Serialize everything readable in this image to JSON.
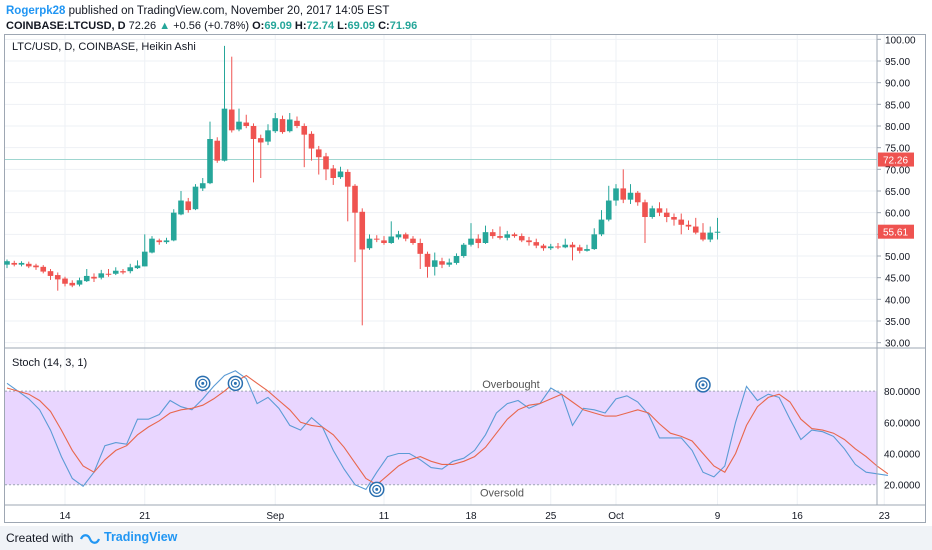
{
  "header": {
    "author": "Rogerpk28",
    "published_text": "published on TradingView.com, November 20, 2017 14:05 EST",
    "symbol": "COINBASE:LTCUSD, D",
    "last": "72.26",
    "change": "+0.56 (+0.78%)",
    "o_label": "O:",
    "o_value": "69.09",
    "h_label": "H:",
    "h_value": "72.74",
    "l_label": "L:",
    "l_value": "69.09",
    "c_label": "C:",
    "c_value": "71.96"
  },
  "footer": {
    "created_with": "Created with",
    "brand": "TradingView"
  },
  "colors": {
    "up": "#26a69a",
    "down": "#ef5350",
    "k_line": "#5b9bd5",
    "d_line": "#e8674d",
    "band_fill": "#e9d6ff",
    "label_bg_green": "#26a69a",
    "label_bg_red": "#ef5350"
  },
  "chart_data": [
    {
      "type": "candlestick",
      "title": "LTC/USD, D, COINBASE, Heikin Ashi",
      "ylim": [
        29,
        101
      ],
      "y_ticks": [
        "100.00",
        "95.00",
        "90.00",
        "85.00",
        "80.00",
        "75.00",
        "70.00",
        "65.00",
        "60.00",
        "55.00",
        "50.00",
        "45.00",
        "40.00",
        "35.00",
        "30.00"
      ],
      "x_tick_labels": [
        {
          "i": 8,
          "label": "14"
        },
        {
          "i": 19,
          "label": "21"
        },
        {
          "i": 37,
          "label": "Sep"
        },
        {
          "i": 52,
          "label": "11"
        },
        {
          "i": 64,
          "label": "18"
        },
        {
          "i": 75,
          "label": "25"
        },
        {
          "i": 84,
          "label": "Oct"
        },
        {
          "i": 98,
          "label": "9"
        },
        {
          "i": 109,
          "label": "16"
        },
        {
          "i": 121,
          "label": "23"
        }
      ],
      "last_price": "72.26",
      "current_price": "55.61",
      "candles": [
        [
          48.0,
          48.8,
          49.2,
          47.2
        ],
        [
          48.4,
          48.0,
          48.9,
          47.6
        ],
        [
          48.0,
          48.4,
          48.8,
          47.6
        ],
        [
          48.2,
          47.6,
          48.7,
          47.2
        ],
        [
          47.8,
          47.4,
          48.2,
          46.8
        ],
        [
          47.5,
          46.4,
          47.9,
          46.0
        ],
        [
          46.5,
          45.4,
          47.0,
          44.5
        ],
        [
          45.6,
          44.6,
          46.2,
          42.0
        ],
        [
          44.8,
          43.6,
          45.2,
          43.0
        ],
        [
          43.8,
          43.2,
          44.4,
          42.8
        ],
        [
          43.4,
          44.4,
          45.0,
          43.0
        ],
        [
          44.2,
          45.4,
          47.0,
          44.0
        ],
        [
          45.2,
          44.8,
          46.0,
          44.0
        ],
        [
          45.0,
          46.0,
          46.8,
          44.6
        ],
        [
          45.9,
          45.8,
          47.0,
          45.2
        ],
        [
          45.9,
          46.6,
          47.4,
          45.6
        ],
        [
          46.5,
          46.2,
          47.0,
          45.8
        ],
        [
          46.5,
          47.4,
          48.2,
          46.0
        ],
        [
          47.2,
          47.8,
          49.0,
          47.0
        ],
        [
          47.6,
          51.0,
          55.0,
          47.6
        ],
        [
          50.8,
          54.0,
          54.6,
          50.6
        ],
        [
          53.6,
          53.2,
          54.0,
          52.6
        ],
        [
          53.2,
          53.6,
          54.2,
          52.8
        ],
        [
          53.6,
          60.0,
          60.8,
          53.4
        ],
        [
          59.6,
          62.8,
          65.0,
          59.4
        ],
        [
          62.6,
          60.6,
          63.4,
          60.0
        ],
        [
          60.8,
          66.0,
          66.6,
          60.6
        ],
        [
          65.6,
          66.8,
          68.0,
          65.0
        ],
        [
          66.8,
          77.0,
          81.0,
          66.6
        ],
        [
          76.6,
          72.0,
          77.4,
          71.5
        ],
        [
          72.0,
          84.0,
          98.5,
          71.8
        ],
        [
          83.8,
          79.0,
          96.0,
          78.5
        ],
        [
          79.2,
          81.0,
          84.0,
          78.8
        ],
        [
          80.8,
          80.0,
          82.6,
          79.5
        ],
        [
          80.0,
          77.0,
          80.6,
          67.0
        ],
        [
          77.2,
          76.2,
          78.0,
          68.0
        ],
        [
          76.4,
          79.0,
          80.4,
          75.6
        ],
        [
          78.8,
          81.8,
          83.0,
          78.4
        ],
        [
          81.6,
          78.6,
          82.4,
          78.2
        ],
        [
          78.8,
          81.5,
          83.0,
          78.5
        ],
        [
          81.2,
          80.0,
          82.2,
          79.5
        ],
        [
          80.0,
          78.0,
          80.6,
          70.5
        ],
        [
          78.2,
          74.8,
          78.8,
          72.0
        ],
        [
          74.6,
          72.8,
          75.4,
          68.8
        ],
        [
          73.0,
          70.0,
          73.8,
          67.5
        ],
        [
          70.2,
          68.0,
          71.0,
          66.4
        ],
        [
          68.2,
          69.5,
          70.6,
          67.8
        ],
        [
          69.4,
          66.0,
          70.0,
          58.0
        ],
        [
          66.2,
          60.0,
          66.6,
          48.6
        ],
        [
          60.2,
          51.5,
          61.0,
          34.0
        ],
        [
          51.8,
          54.0,
          55.0,
          51.4
        ],
        [
          54.0,
          53.8,
          54.8,
          53.2
        ],
        [
          53.6,
          53.0,
          54.6,
          52.6
        ],
        [
          53.0,
          54.5,
          58.0,
          52.8
        ],
        [
          54.3,
          55.0,
          55.8,
          53.8
        ],
        [
          55.0,
          54.0,
          55.4,
          53.4
        ],
        [
          54.0,
          53.0,
          54.6,
          52.6
        ],
        [
          53.0,
          50.5,
          54.0,
          47.0
        ],
        [
          50.5,
          47.5,
          51.0,
          45.0
        ],
        [
          47.5,
          49.0,
          50.8,
          45.5
        ],
        [
          48.8,
          48.0,
          49.6,
          47.2
        ],
        [
          48.0,
          48.5,
          49.4,
          47.5
        ],
        [
          48.4,
          50.0,
          50.6,
          48.0
        ],
        [
          50.0,
          52.6,
          53.0,
          49.6
        ],
        [
          52.6,
          54.0,
          57.6,
          52.2
        ],
        [
          54.0,
          53.0,
          55.0,
          51.8
        ],
        [
          53.0,
          55.5,
          57.0,
          52.8
        ],
        [
          55.5,
          54.6,
          56.2,
          54.0
        ],
        [
          54.6,
          54.2,
          56.8,
          53.8
        ],
        [
          54.2,
          55.0,
          55.8,
          53.6
        ],
        [
          55.0,
          54.6,
          55.4,
          54.2
        ],
        [
          54.6,
          53.6,
          55.2,
          53.2
        ],
        [
          53.6,
          53.2,
          54.4,
          52.4
        ],
        [
          53.2,
          52.4,
          54.0,
          51.8
        ],
        [
          52.4,
          51.8,
          52.8,
          51.2
        ],
        [
          51.8,
          52.2,
          52.8,
          51.4
        ],
        [
          52.2,
          52.0,
          53.0,
          51.6
        ],
        [
          52.0,
          52.6,
          54.0,
          51.8
        ],
        [
          52.6,
          52.0,
          53.2,
          49.0
        ],
        [
          52.0,
          51.2,
          52.6,
          50.6
        ],
        [
          51.2,
          51.6,
          52.6,
          51.0
        ],
        [
          51.6,
          55.0,
          56.4,
          51.4
        ],
        [
          55.0,
          58.4,
          60.6,
          54.6
        ],
        [
          58.4,
          62.8,
          66.2,
          58.0
        ],
        [
          62.8,
          65.6,
          66.6,
          61.6
        ],
        [
          65.6,
          63.0,
          70.0,
          62.2
        ],
        [
          63.0,
          64.6,
          66.6,
          62.0
        ],
        [
          64.6,
          62.4,
          65.0,
          61.6
        ],
        [
          62.4,
          59.0,
          63.0,
          53.0
        ],
        [
          59.0,
          61.0,
          61.6,
          58.6
        ],
        [
          61.0,
          60.0,
          62.4,
          59.2
        ],
        [
          60.0,
          59.0,
          61.0,
          57.8
        ],
        [
          59.0,
          58.4,
          59.8,
          57.0
        ],
        [
          58.4,
          57.2,
          59.8,
          55.0
        ],
        [
          57.2,
          56.8,
          58.2,
          56.0
        ],
        [
          56.8,
          55.4,
          58.8,
          55.0
        ],
        [
          55.4,
          53.8,
          57.6,
          53.4
        ],
        [
          53.8,
          55.4,
          56.8,
          53.2
        ],
        [
          55.4,
          55.6,
          58.8,
          53.8
        ]
      ]
    },
    {
      "type": "line",
      "title": "Stoch (14, 3, 1)",
      "ylim": [
        7,
        107
      ],
      "y_ticks": [
        "80.0000",
        "60.0000",
        "40.0000",
        "20.0000"
      ],
      "band": [
        20,
        80
      ],
      "band_labels": {
        "upper": "Overbought",
        "lower": "Oversold"
      },
      "series": [
        {
          "values": [
            85,
            80,
            75,
            68,
            55,
            38,
            24,
            19,
            28,
            45,
            47,
            46,
            62,
            62,
            65,
            74,
            70,
            68,
            75,
            83,
            90,
            93,
            88,
            72,
            76,
            69,
            58,
            55,
            63,
            57,
            42,
            30,
            20,
            17,
            28,
            38,
            40,
            40,
            36,
            31,
            30,
            35,
            37,
            42,
            52,
            66,
            72,
            74,
            69,
            72,
            82,
            78,
            58,
            69,
            68,
            66,
            75,
            77,
            73,
            65,
            50,
            50,
            50,
            42,
            28,
            25,
            32,
            60,
            83,
            74,
            78,
            76,
            62,
            49,
            55,
            54,
            51,
            43,
            33,
            28,
            27,
            26
          ]
        },
        {
          "values": [
            82,
            80,
            78,
            74,
            67,
            55,
            42,
            32,
            28,
            36,
            42,
            45,
            52,
            57,
            61,
            66,
            68,
            69,
            71,
            75,
            80,
            86,
            90,
            85,
            80,
            74,
            68,
            60,
            58,
            57,
            52,
            44,
            34,
            24,
            20,
            26,
            32,
            36,
            38,
            35,
            33,
            33,
            35,
            38,
            44,
            53,
            62,
            68,
            71,
            72,
            75,
            78,
            73,
            68,
            66,
            64,
            64,
            66,
            68,
            66,
            59,
            53,
            51,
            48,
            40,
            32,
            28,
            40,
            58,
            70,
            76,
            78,
            73,
            62,
            56,
            55,
            53,
            49,
            43,
            38,
            32,
            27
          ]
        }
      ],
      "markers": [
        [
          18,
          85
        ],
        [
          21,
          85
        ],
        [
          34,
          17
        ],
        [
          64,
          84
        ]
      ]
    }
  ]
}
